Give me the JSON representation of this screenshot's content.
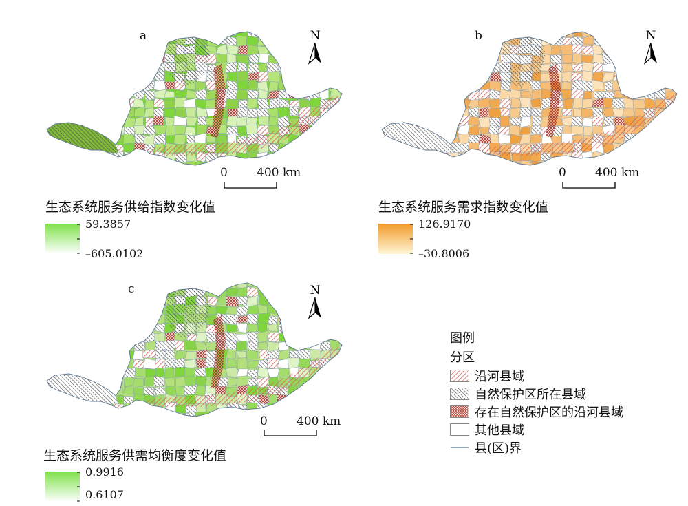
{
  "panels": [
    {
      "letter": "a",
      "north": "N",
      "scale": {
        "zero": "0",
        "end": "400 km"
      },
      "legend_title": "生态系统服务供给指数变化值",
      "max_value": "59.3857",
      "min_value": "–605.0102",
      "ramp_colors": [
        "#7ee14a",
        "#ffffff"
      ],
      "fills": [
        "#7fd63b",
        "#a8e06a",
        "#c7eb96",
        "#9fd85a",
        "#b5e57a",
        "#d9f2b8",
        "#8fd24a"
      ]
    },
    {
      "letter": "b",
      "north": "N",
      "scale": {
        "zero": "0",
        "end": "400 km"
      },
      "legend_title": "生态系统服务需求指数变化值",
      "max_value": "126.9170",
      "min_value": "–30.8006",
      "ramp_colors": [
        "#f29b2c",
        "#fff6d6"
      ],
      "fills": [
        "#f6c98c",
        "#f2a84f",
        "#fde3bb",
        "#f7bd77",
        "#efa040",
        "#fbd9a6",
        "#f4b566"
      ]
    },
    {
      "letter": "c",
      "north": "N",
      "scale": {
        "zero": "0",
        "end": "400 km"
      },
      "legend_title": "生态系统服务供需均衡度变化值",
      "max_value": "0.9916",
      "min_value": "0.6107",
      "ramp_colors": [
        "#7ee14a",
        "#ffffff"
      ],
      "fills": [
        "#b3e07d",
        "#7fd63b",
        "#cce9a6",
        "#93d957",
        "#a5dd6c",
        "#def3c6",
        "#88d24a"
      ]
    }
  ],
  "key": {
    "title": "图例",
    "subtitle": "分区",
    "items": [
      {
        "label": "沿河县域",
        "kind": "river"
      },
      {
        "label": "自然保护区所在县域",
        "kind": "reserve"
      },
      {
        "label": "存在自然保护区的沿河县域",
        "kind": "both"
      },
      {
        "label": "其他县域",
        "kind": "other"
      },
      {
        "label": "县(区)界",
        "kind": "boundary"
      }
    ]
  }
}
